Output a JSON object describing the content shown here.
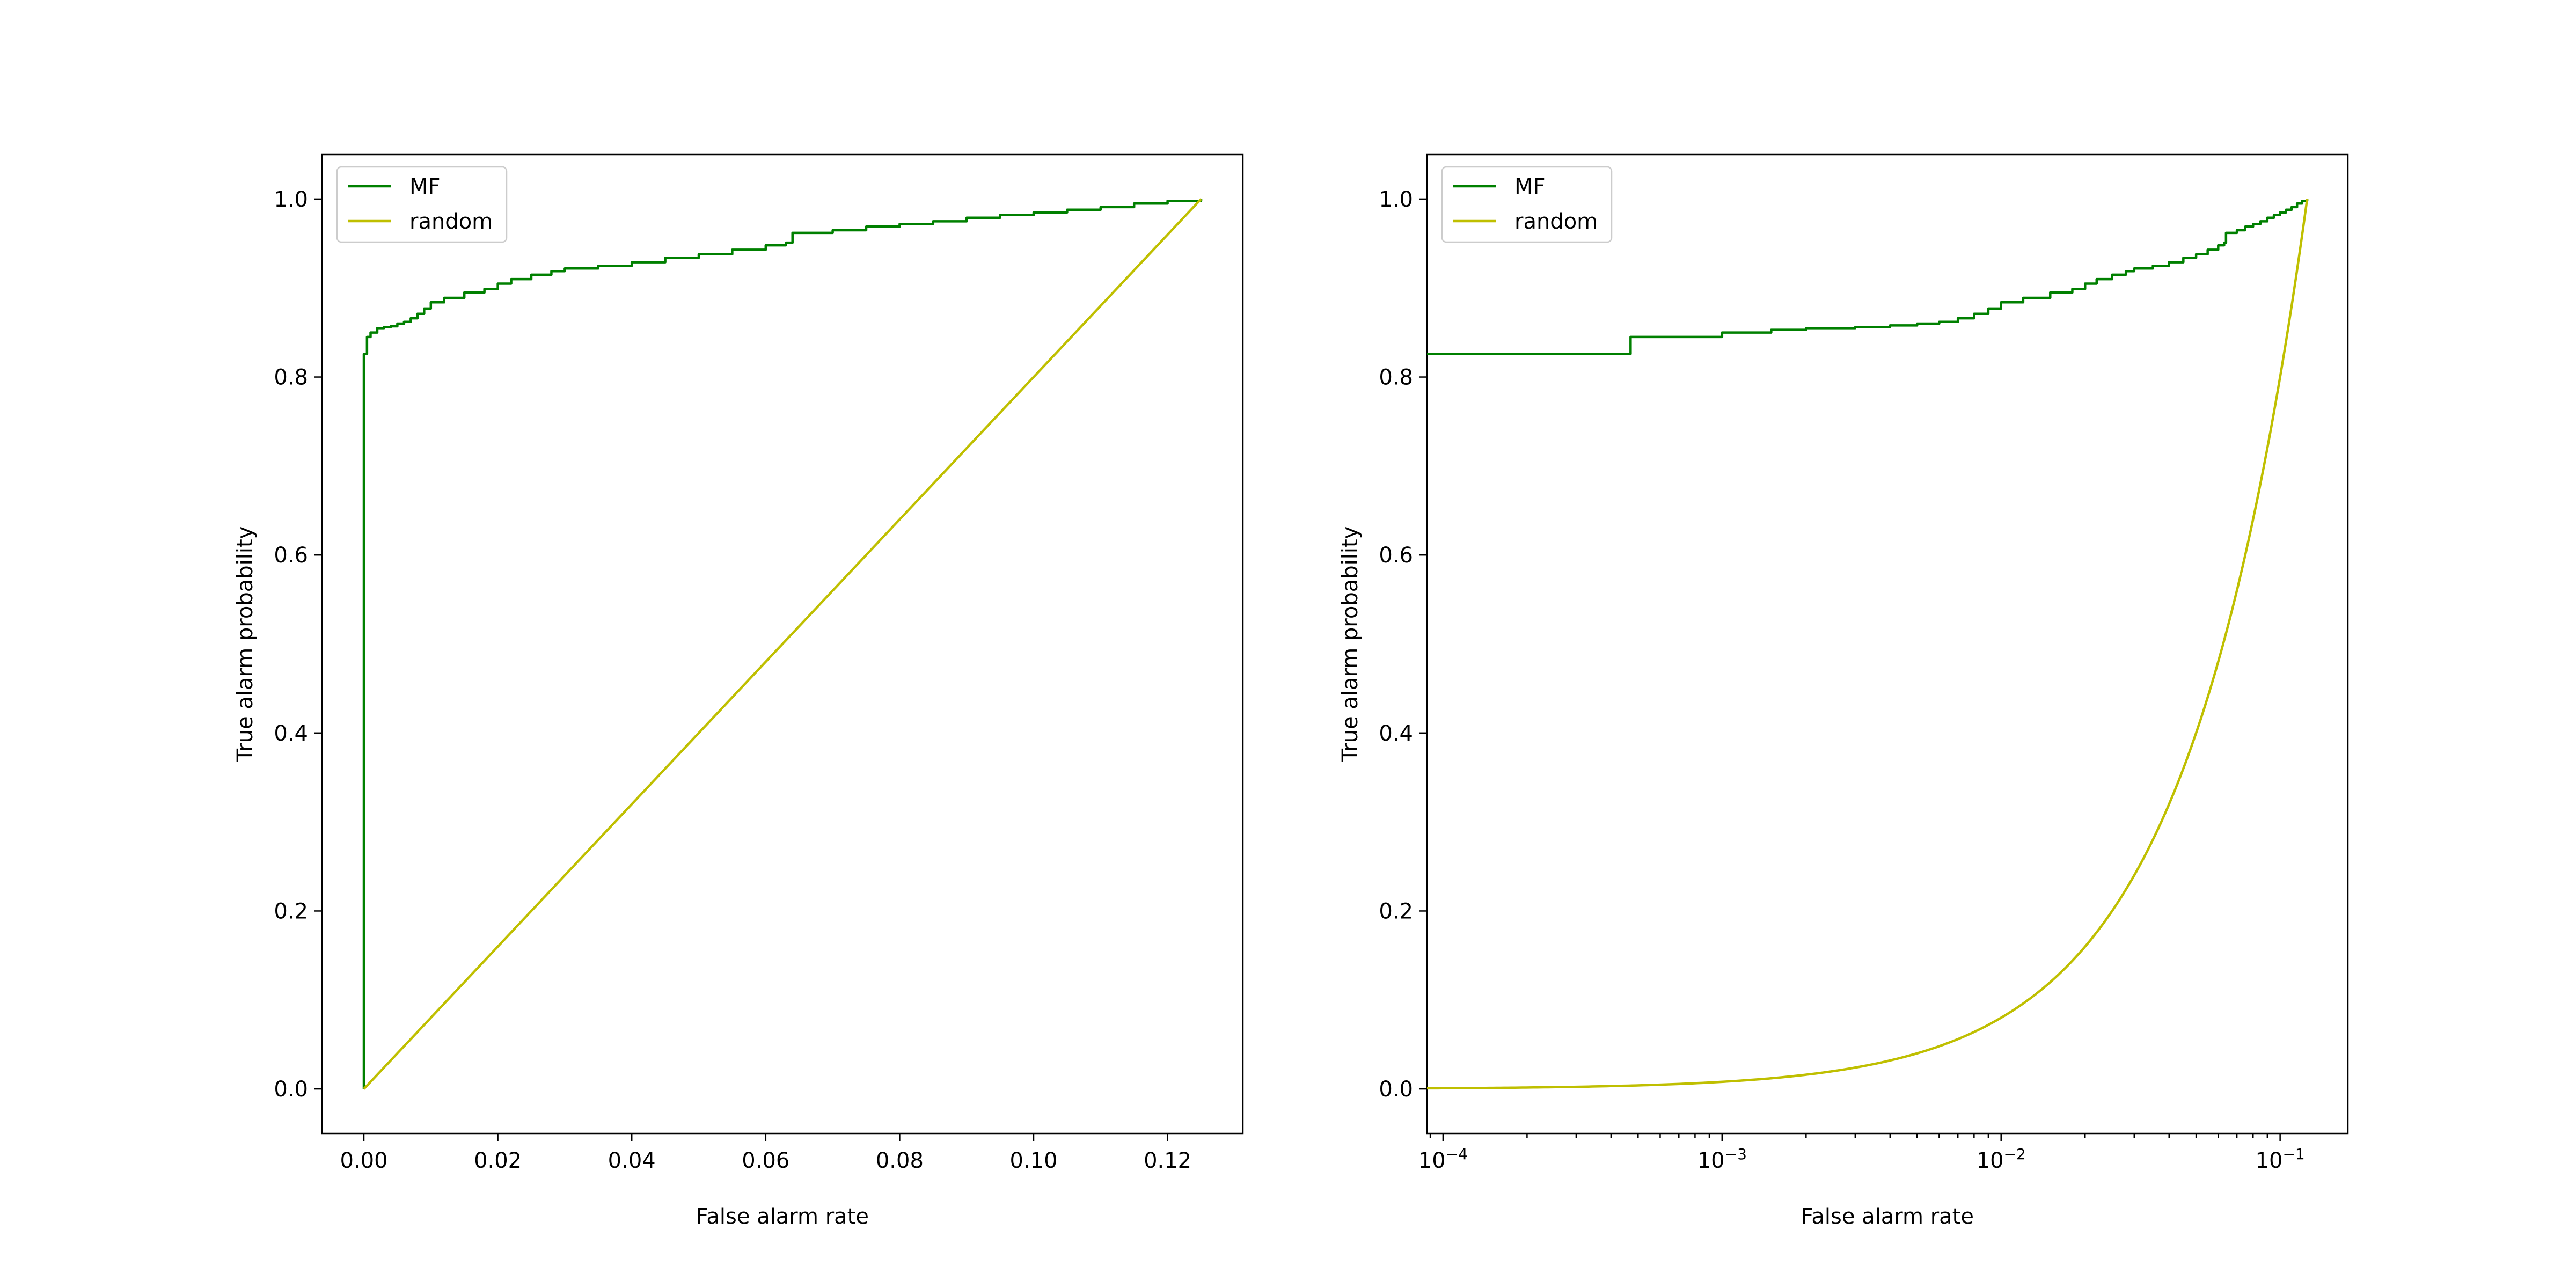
{
  "chart_data": [
    {
      "type": "line",
      "title": "",
      "xlabel": "False alarm rate",
      "ylabel": "True alarm probability",
      "xscale": "linear",
      "xlim": [
        -0.00625,
        0.13125
      ],
      "ylim": [
        -0.05,
        1.05
      ],
      "xticks": [
        0.0,
        0.02,
        0.04,
        0.06,
        0.08,
        0.1,
        0.12
      ],
      "xtick_labels": [
        "0.00",
        "0.02",
        "0.04",
        "0.06",
        "0.08",
        "0.10",
        "0.12"
      ],
      "yticks": [
        0.0,
        0.2,
        0.4,
        0.6,
        0.8,
        1.0
      ],
      "ytick_labels": [
        "0.0",
        "0.2",
        "0.4",
        "0.6",
        "0.8",
        "1.0"
      ],
      "legend_position": "top-left",
      "grid": false,
      "series": [
        {
          "name": "MF",
          "color": "#008000",
          "step": true,
          "x": [
            0.0,
            0.0,
            0.0001,
            0.00047,
            0.001,
            0.002,
            0.003,
            0.004,
            0.005,
            0.006,
            0.007,
            0.008,
            0.009,
            0.01,
            0.012,
            0.015,
            0.018,
            0.02,
            0.022,
            0.025,
            0.028,
            0.03,
            0.035,
            0.04,
            0.045,
            0.05,
            0.055,
            0.06,
            0.063,
            0.064,
            0.07,
            0.075,
            0.08,
            0.085,
            0.09,
            0.095,
            0.1,
            0.105,
            0.11,
            0.115,
            0.12,
            0.125
          ],
          "y": [
            0.0,
            0.826,
            0.826,
            0.845,
            0.85,
            0.855,
            0.856,
            0.857,
            0.86,
            0.862,
            0.866,
            0.871,
            0.877,
            0.884,
            0.889,
            0.895,
            0.899,
            0.905,
            0.91,
            0.915,
            0.919,
            0.922,
            0.925,
            0.929,
            0.934,
            0.938,
            0.943,
            0.948,
            0.951,
            0.962,
            0.965,
            0.969,
            0.972,
            0.975,
            0.979,
            0.982,
            0.985,
            0.988,
            0.991,
            0.995,
            0.998,
            1.0
          ]
        },
        {
          "name": "random",
          "color": "#bfbf00",
          "x": [
            0.0,
            0.125
          ],
          "y": [
            0.0,
            1.0
          ]
        }
      ]
    },
    {
      "type": "line",
      "title": "",
      "xlabel": "False alarm rate",
      "ylabel": "True alarm probability",
      "xscale": "log",
      "xlim": [
        8.76e-05,
        0.175
      ],
      "ylim": [
        -0.05,
        1.05
      ],
      "xticks": [
        0.0001,
        0.001,
        0.01,
        0.1
      ],
      "xtick_labels": [
        [
          "10",
          "−4"
        ],
        [
          "10",
          "−3"
        ],
        [
          "10",
          "−2"
        ],
        [
          "10",
          "−1"
        ]
      ],
      "yticks": [
        0.0,
        0.2,
        0.4,
        0.6,
        0.8,
        1.0
      ],
      "ytick_labels": [
        "0.0",
        "0.2",
        "0.4",
        "0.6",
        "0.8",
        "1.0"
      ],
      "legend_position": "top-left",
      "grid": false,
      "series": [
        {
          "name": "MF",
          "color": "#008000",
          "step": true,
          "x": [
            8.76e-05,
            0.00047,
            0.001,
            0.0015,
            0.002,
            0.003,
            0.004,
            0.005,
            0.006,
            0.007,
            0.008,
            0.009,
            0.01,
            0.012,
            0.015,
            0.018,
            0.02,
            0.022,
            0.025,
            0.028,
            0.03,
            0.035,
            0.04,
            0.045,
            0.05,
            0.055,
            0.06,
            0.063,
            0.064,
            0.07,
            0.075,
            0.08,
            0.085,
            0.09,
            0.095,
            0.1,
            0.105,
            0.11,
            0.115,
            0.12,
            0.125
          ],
          "y": [
            0.826,
            0.845,
            0.85,
            0.853,
            0.855,
            0.856,
            0.858,
            0.86,
            0.862,
            0.866,
            0.871,
            0.877,
            0.884,
            0.889,
            0.895,
            0.899,
            0.905,
            0.91,
            0.915,
            0.919,
            0.922,
            0.925,
            0.929,
            0.934,
            0.938,
            0.943,
            0.948,
            0.951,
            0.962,
            0.965,
            0.969,
            0.972,
            0.975,
            0.979,
            0.982,
            0.985,
            0.988,
            0.991,
            0.995,
            0.998,
            1.0
          ]
        },
        {
          "name": "random",
          "color": "#bfbf00",
          "x": [
            8.76e-05,
            0.125
          ],
          "y": [
            0.0,
            1.0
          ]
        }
      ]
    }
  ]
}
